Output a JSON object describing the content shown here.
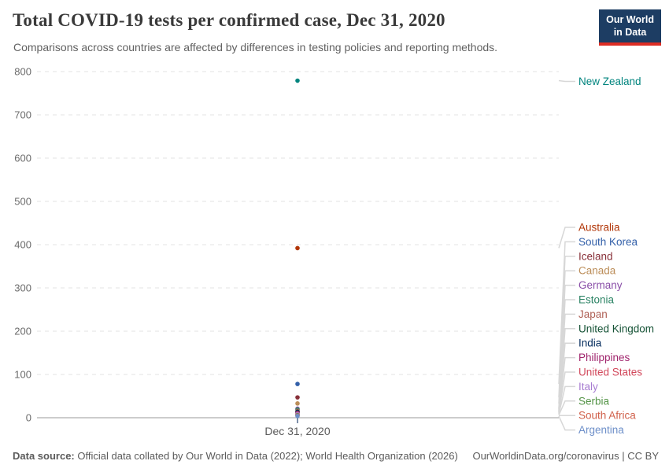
{
  "header": {
    "title": "Total COVID-19 tests per confirmed case, Dec 31, 2020",
    "subtitle": "Comparisons across countries are affected by differences in testing policies and reporting methods.",
    "logo": {
      "line1": "Our World",
      "line2": "in Data",
      "bg_color": "#1d3d63",
      "accent_color": "#dc2c23"
    }
  },
  "chart_data": {
    "type": "scatter",
    "title": "Total COVID-19 tests per confirmed case, Dec 31, 2020",
    "xlabel": "Dec 31, 2020",
    "ylabel": "",
    "ylim": [
      0,
      800
    ],
    "yticks": [
      0,
      100,
      200,
      300,
      400,
      500,
      600,
      700,
      800
    ],
    "grid": "horizontal-dashed",
    "legend_position": "right",
    "x": [
      "Dec 31, 2020"
    ],
    "series": [
      {
        "name": "New Zealand",
        "value": 779,
        "color": "#00847E"
      },
      {
        "name": "Australia",
        "value": 392,
        "color": "#B13507"
      },
      {
        "name": "South Korea",
        "value": 78,
        "color": "#3360A9"
      },
      {
        "name": "Iceland",
        "value": 47,
        "color": "#883039"
      },
      {
        "name": "Canada",
        "value": 33,
        "color": "#BC8E5A"
      },
      {
        "name": "Germany",
        "value": 21,
        "color": "#8A4FA8"
      },
      {
        "name": "Estonia",
        "value": 19,
        "color": "#2C8465"
      },
      {
        "name": "Japan",
        "value": 16,
        "color": "#AF6156"
      },
      {
        "name": "United Kingdom",
        "value": 14,
        "color": "#155235"
      },
      {
        "name": "India",
        "value": 13,
        "color": "#00295B"
      },
      {
        "name": "Philippines",
        "value": 11,
        "color": "#A0246C"
      },
      {
        "name": "United States",
        "value": 9,
        "color": "#D2495C"
      },
      {
        "name": "Italy",
        "value": 8,
        "color": "#A77CD1"
      },
      {
        "name": "Serbia",
        "value": 6,
        "color": "#549447"
      },
      {
        "name": "South Africa",
        "value": 5,
        "color": "#D0604A"
      },
      {
        "name": "Argentina",
        "value": 4,
        "color": "#6D8FC9"
      }
    ]
  },
  "footer": {
    "source_label": "Data source:",
    "source_text": "Official data collated by Our World in Data (2022); World Health Organization (2026)",
    "link_text": "OurWorldinData.org/coronavirus",
    "separator": "|",
    "license": "CC BY"
  }
}
